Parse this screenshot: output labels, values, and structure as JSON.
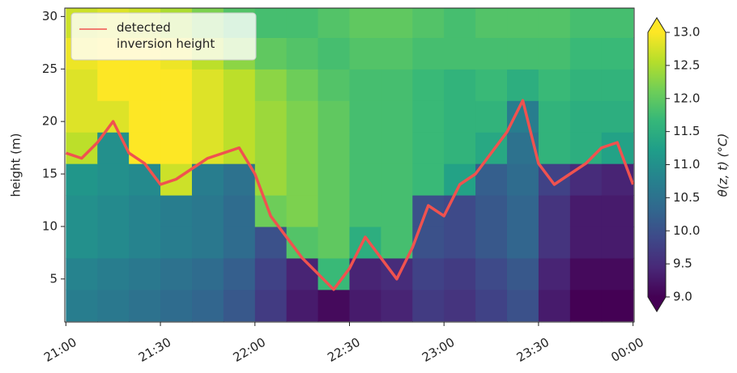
{
  "chart_data": {
    "type": "heatmap",
    "ylabel": "height (m)",
    "colorbar_label": "θ(z, t) (°C)",
    "colormap": "viridis",
    "clim": [
      9,
      13
    ],
    "cticks": [
      {
        "value": 9,
        "label": "9.0"
      },
      {
        "value": 9.5,
        "label": "9.5"
      },
      {
        "value": 10,
        "label": "10.0"
      },
      {
        "value": 10.5,
        "label": "10.5"
      },
      {
        "value": 11,
        "label": "11.0"
      },
      {
        "value": 11.5,
        "label": "11.5"
      },
      {
        "value": 12,
        "label": "12.0"
      },
      {
        "value": 12.5,
        "label": "12.5"
      },
      {
        "value": 13,
        "label": "13.0"
      }
    ],
    "xlim": [
      -0.35,
      180.35
    ],
    "xticks": [
      {
        "value": 0,
        "label": "21:00"
      },
      {
        "value": 30,
        "label": "21:30"
      },
      {
        "value": 60,
        "label": "22:00"
      },
      {
        "value": 90,
        "label": "22:30"
      },
      {
        "value": 120,
        "label": "23:00"
      },
      {
        "value": 150,
        "label": "23:30"
      },
      {
        "value": 180,
        "label": "00:00"
      }
    ],
    "ylim": [
      0.9,
      30.8
    ],
    "yticks": [
      5,
      10,
      15,
      20,
      25,
      30
    ],
    "legend": "upper left",
    "x": [
      5,
      15,
      25,
      35,
      45,
      55,
      65,
      75,
      85,
      95,
      105,
      115,
      125,
      135,
      145,
      155,
      165,
      175
    ],
    "y": [
      2.5,
      5.5,
      8.5,
      11.5,
      14.5,
      17.5,
      20.5,
      23.5,
      26.5,
      29.5
    ],
    "values": [
      [
        10.7,
        10.6,
        10.5,
        10.4,
        10.3,
        10.1,
        9.7,
        9.3,
        9.1,
        9.3,
        9.4,
        9.7,
        9.6,
        9.8,
        10.0,
        9.3,
        9.0,
        9.0
      ],
      [
        10.8,
        10.7,
        10.6,
        10.5,
        10.4,
        10.2,
        9.8,
        9.4,
        11.7,
        9.4,
        9.5,
        9.8,
        9.7,
        9.9,
        10.1,
        9.4,
        9.1,
        9.1
      ],
      [
        11.0,
        10.9,
        10.8,
        10.7,
        10.6,
        10.4,
        10.0,
        11.9,
        12.0,
        11.5,
        11.8,
        10.0,
        9.9,
        10.1,
        10.3,
        9.6,
        9.3,
        9.3
      ],
      [
        11.0,
        10.9,
        10.8,
        10.7,
        10.6,
        10.4,
        12.1,
        12.2,
        12.0,
        11.8,
        11.8,
        10.0,
        9.9,
        10.1,
        10.3,
        9.6,
        9.3,
        9.3
      ],
      [
        11.1,
        11.0,
        10.9,
        12.7,
        10.7,
        10.5,
        12.4,
        12.2,
        12.0,
        11.8,
        11.8,
        11.7,
        11.3,
        10.2,
        10.4,
        9.8,
        9.5,
        9.4
      ],
      [
        12.6,
        11.0,
        13,
        13,
        12.8,
        12.6,
        12.4,
        12.2,
        12,
        11.8,
        11.8,
        11.7,
        11.6,
        11.4,
        10.5,
        11.6,
        11.5,
        11.3
      ],
      [
        12.8,
        12.8,
        13,
        13,
        12.8,
        12.6,
        12.4,
        12.2,
        12,
        11.8,
        11.8,
        11.7,
        11.6,
        11.6,
        10.7,
        11.6,
        11.5,
        11.5
      ],
      [
        12.8,
        13,
        13,
        13,
        12.8,
        12.6,
        12.3,
        12.1,
        11.9,
        11.8,
        11.8,
        11.7,
        11.6,
        11.7,
        11.5,
        11.7,
        11.6,
        11.6
      ],
      [
        12.9,
        13,
        13,
        12.9,
        12.6,
        12.3,
        12.0,
        11.9,
        11.8,
        11.9,
        11.9,
        11.8,
        11.8,
        11.8,
        11.8,
        11.8,
        11.7,
        11.7
      ],
      [
        12.7,
        12.8,
        12.7,
        12.5,
        12.2,
        11.9,
        11.8,
        11.8,
        11.9,
        12.0,
        12.0,
        11.9,
        11.8,
        11.9,
        11.9,
        11.9,
        11.8,
        11.8
      ]
    ],
    "series": [
      {
        "name": "detected inversion height",
        "color": "#f0524f",
        "x": [
          0,
          5,
          10,
          15,
          20,
          25,
          30,
          35,
          40,
          45,
          50,
          55,
          60,
          65,
          70,
          75,
          80,
          85,
          90,
          95,
          100,
          105,
          110,
          115,
          120,
          125,
          130,
          135,
          140,
          145,
          150,
          155,
          160,
          165,
          170,
          175,
          180
        ],
        "values": [
          17,
          16.5,
          18,
          20,
          17,
          16,
          14,
          14.5,
          15.5,
          16.5,
          17,
          17.5,
          15,
          11,
          9,
          7,
          5.5,
          4,
          6,
          9,
          7,
          5,
          8,
          12,
          11,
          14,
          15,
          17,
          19,
          22,
          16,
          14,
          15,
          16,
          17.5,
          18,
          14
        ]
      }
    ]
  }
}
